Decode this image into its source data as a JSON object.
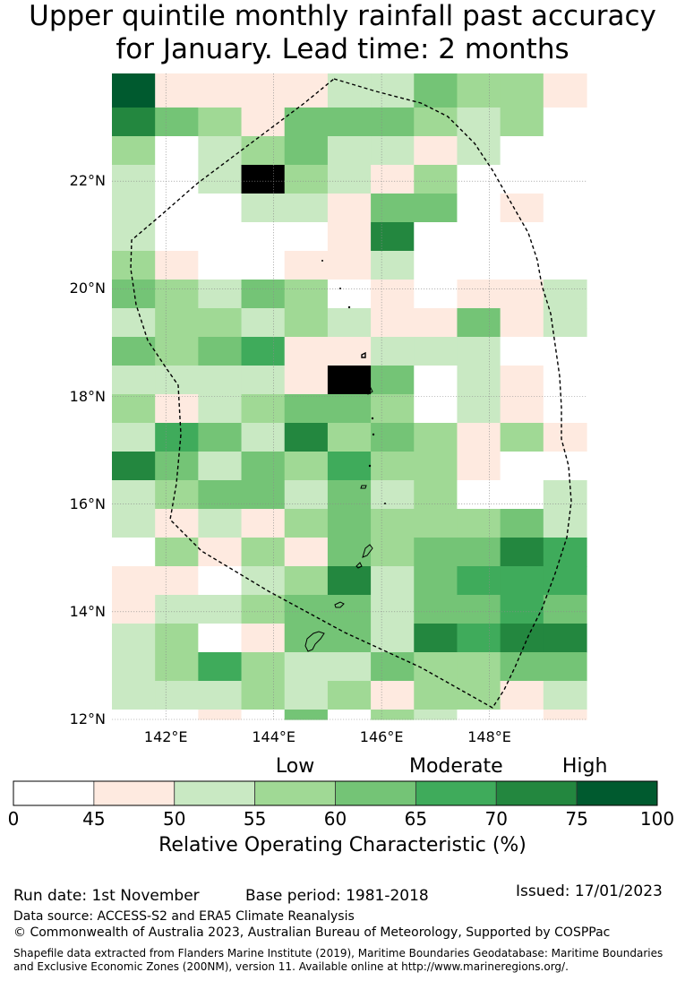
{
  "title": {
    "line1": "Upper quintile monthly rainfall past accuracy",
    "line2": "for January. Lead time: 2 months"
  },
  "map": {
    "lon_range": [
      141.0,
      149.8
    ],
    "lat_range": [
      12.0,
      24.0
    ],
    "lat_ticks": [
      "12°N",
      "14°N",
      "16°N",
      "18°N",
      "20°N",
      "22°N"
    ],
    "lon_ticks": [
      "142°E",
      "144°E",
      "146°E",
      "148°E"
    ],
    "grid_cols": 11,
    "grid_rows": 22,
    "cell_bins": [
      "7,1,1,1,1,2,2,4,3,3,1",
      "6,4,3,1,4,4,4,3,2,3,0",
      "3,0,2,3,4,2,2,1,2,0,0",
      "2,0,2,8,3,2,1,3,0,0,0",
      "2,0,0,2,2,1,4,4,0,1,0",
      "2,0,0,0,0,1,6,0,0,0,0",
      "3,1,0,0,1,1,2,0,0,0,0",
      "4,3,2,4,3,0,1,0,1,1,2",
      "2,3,3,2,3,2,1,1,4,1,2",
      "4,3,4,5,1,1,2,2,2,0,0",
      "2,2,2,2,1,8,4,0,2,1,0",
      "3,1,2,3,4,4,3,0,2,1,0",
      "2,5,4,2,6,3,4,3,1,3,1",
      "6,4,2,4,3,5,3,3,1,0,0",
      "2,3,4,4,2,4,2,3,0,0,2",
      "2,1,2,1,3,4,3,3,3,4,2",
      "0,3,1,3,1,4,3,4,4,6,5",
      "1,1,0,2,3,6,2,4,5,5,5",
      "1,2,2,3,4,4,2,4,4,5,4",
      "2,3,0,1,4,4,2,6,5,6,6",
      "2,3,5,3,2,2,4,3,3,4,4",
      "2,2,2,3,2,3,1,3,3,1,2"
    ],
    "bottom_strip": "0,0,1,0,4,0,3,2,0,0,1"
  },
  "colorbar": {
    "bins": [
      "0",
      "45",
      "50",
      "55",
      "60",
      "65",
      "70",
      "75",
      "100"
    ],
    "colors": [
      "#ffffff",
      "#feeae0",
      "#c9e9c3",
      "#a0d995",
      "#74c476",
      "#3fab5b",
      "#23873f",
      "#005a2f"
    ],
    "categories": [
      {
        "label": "Low",
        "at": 57.5
      },
      {
        "label": "Moderate",
        "at": 67.5
      },
      {
        "label": "High",
        "at": 77.5
      }
    ],
    "label": "Relative Operating Characteristic (%)"
  },
  "footer": {
    "run_date": "Run date: 1st November",
    "base_period": "Base period: 1981-2018",
    "issued": "Issued: 17/01/2023",
    "data_source": "Data source: ACCESS-S2 and ERA5 Climate Reanalysis",
    "copyright": "© Commonwealth of Australia 2023, Australian Bureau of Meteorology, Supported by COSPPac",
    "shapefile_1": "Shapefile data extracted from Flanders Marine Institute (2019), Maritime Boundaries Geodatabase: Maritime Boundaries",
    "shapefile_2": "and Exclusive Economic Zones (200NM), version 11. Available online at http://www.marineregions.org/."
  }
}
